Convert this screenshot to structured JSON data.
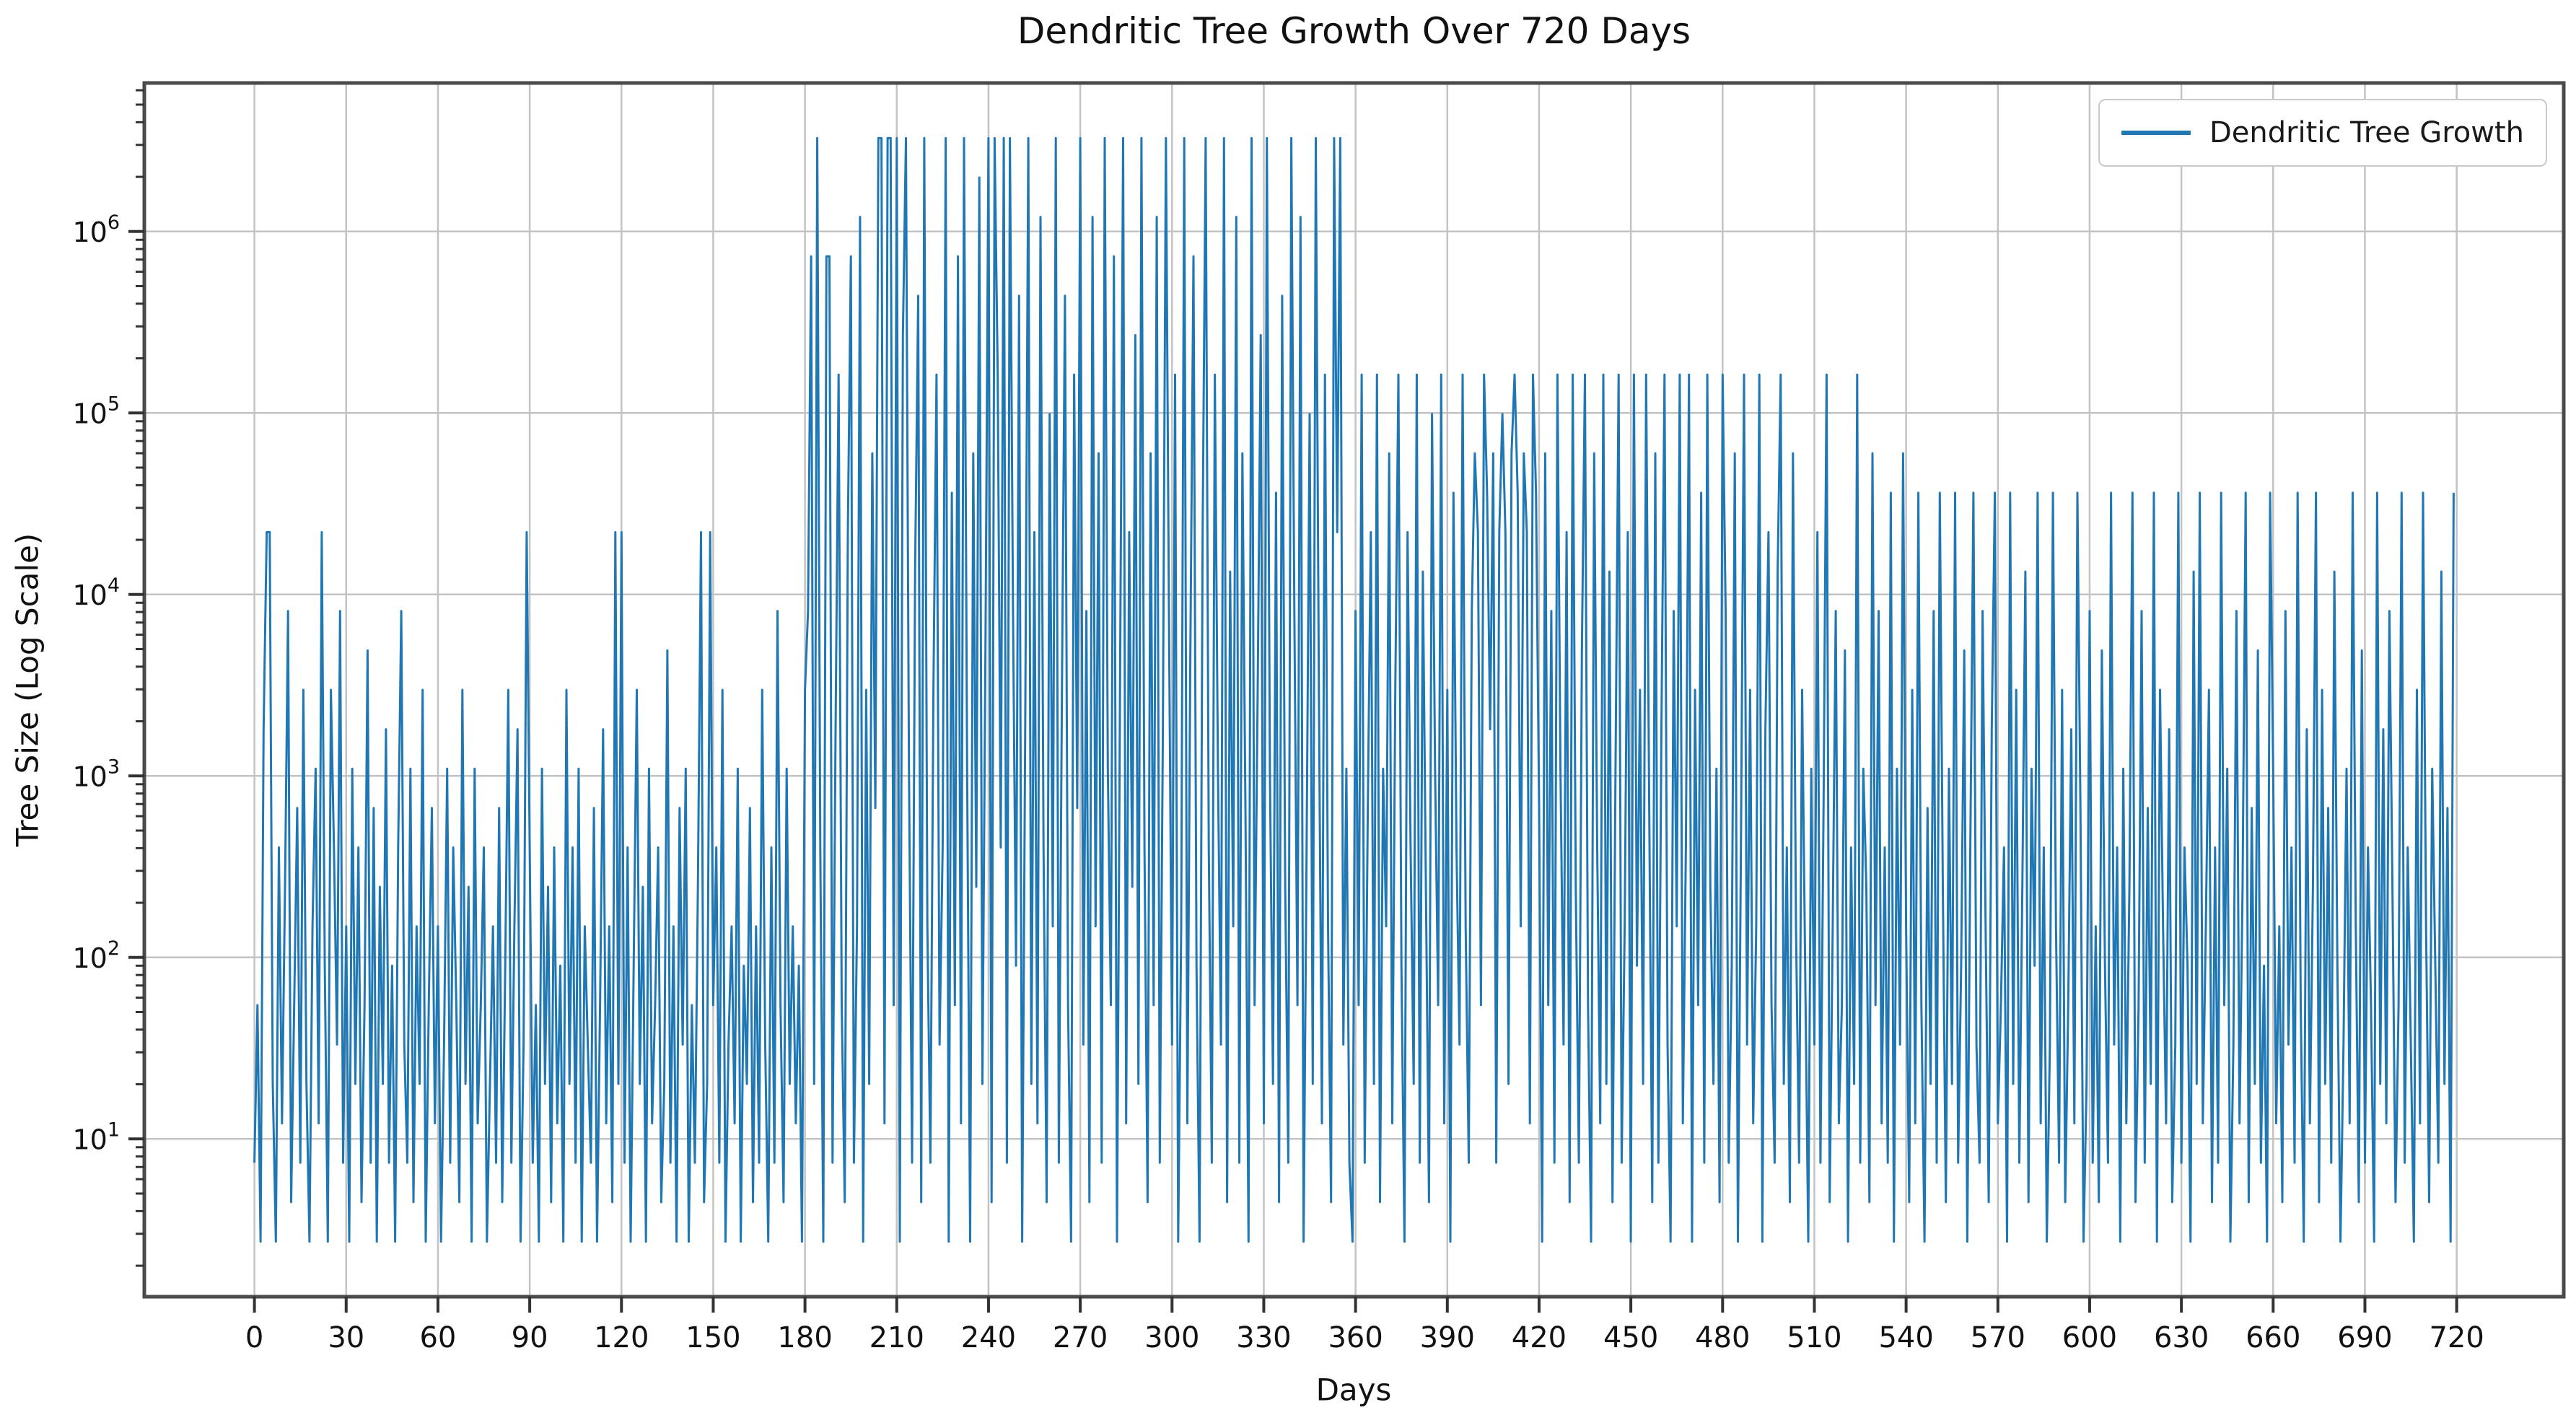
{
  "chart_data": {
    "type": "line",
    "title": "Dendritic Tree Growth Over 720 Days",
    "xlabel": "Days",
    "ylabel": "Tree Size (Log Scale)",
    "grid": true,
    "legend": {
      "position": "upper right",
      "entries": [
        {
          "label": "Dendritic Tree Growth",
          "color": "#1f77b4"
        }
      ]
    },
    "x_ticks": [
      0,
      30,
      60,
      90,
      120,
      150,
      180,
      210,
      240,
      270,
      300,
      330,
      360,
      390,
      420,
      450,
      480,
      510,
      540,
      570,
      600,
      630,
      660,
      690,
      720
    ],
    "y_scale": "log10",
    "y_tick_exponents": [
      1,
      2,
      3,
      4,
      5,
      6
    ],
    "xlim": [
      -36,
      755
    ],
    "ylim": [
      1.35,
      6580000
    ],
    "colors": {
      "line": "#1f77b4",
      "grid": "#c3c3c3",
      "spine": "#4a4a4a",
      "tick": "#333333",
      "text": "#111111"
    },
    "series": [
      {
        "name": "Dendritic Tree Growth",
        "color": "#1f77b4",
        "x_start": 0,
        "x_step": 1,
        "n_points": 720,
        "y_transform": "value = exp(y_ln[i])",
        "y_ln": [
          2,
          4,
          1,
          7.5,
          10,
          10,
          3,
          1,
          6,
          2.5,
          5.5,
          9,
          1.5,
          4,
          6.5,
          2,
          8,
          3,
          1,
          5,
          7,
          2.5,
          10,
          4.5,
          1,
          8,
          6,
          3.5,
          9,
          2,
          5,
          1,
          7,
          3,
          6,
          1.5,
          4,
          8.5,
          2,
          6.5,
          1,
          5.5,
          3,
          7.5,
          2,
          4.5,
          1,
          6,
          9,
          3.5,
          2,
          7,
          1.5,
          5,
          3,
          8,
          1,
          4,
          6.5,
          2.5,
          5,
          1,
          3.5,
          7,
          2,
          6,
          4,
          1.5,
          8,
          3,
          5.5,
          1,
          7,
          2.5,
          4,
          6,
          1,
          3,
          5,
          2,
          6.5,
          1.5,
          4.5,
          8,
          2,
          5,
          7.5,
          1,
          3.5,
          10,
          6,
          2,
          4,
          1,
          7,
          3,
          5.5,
          1.5,
          6,
          2.5,
          4.5,
          1,
          8,
          3,
          6,
          2,
          7,
          1,
          5,
          3.5,
          2,
          6.5,
          1,
          4,
          7.5,
          2.5,
          5,
          1.5,
          10,
          3,
          10,
          2,
          6,
          1,
          4.5,
          8,
          3,
          5.5,
          1,
          7,
          2.5,
          4,
          6,
          1.5,
          3,
          8.5,
          2,
          5,
          1,
          6.5,
          3.5,
          7,
          1,
          4,
          2,
          5.5,
          10,
          1.5,
          3,
          10,
          4,
          6,
          2,
          8,
          1,
          3.5,
          5,
          2.5,
          7,
          1,
          4.5,
          3,
          6.5,
          1.5,
          5,
          2,
          8,
          3.5,
          1,
          6,
          2,
          9,
          4,
          1.5,
          7,
          3,
          5,
          2.5,
          4.5,
          1,
          8,
          9,
          13.5,
          3,
          15,
          6,
          1,
          13.5,
          13.5,
          2,
          7.5,
          12,
          4,
          1.5,
          10,
          13.5,
          2,
          5,
          14,
          1,
          8,
          3,
          11,
          6.5,
          15,
          15,
          2.5,
          15,
          15,
          4,
          15,
          1,
          12.5,
          15,
          7,
          2,
          9.5,
          13,
          1.5,
          15,
          5,
          2,
          8,
          12,
          3.5,
          6,
          15,
          1,
          10.5,
          4,
          13.5,
          2.5,
          15,
          7,
          1,
          11,
          5.5,
          14.5,
          3,
          8.5,
          15,
          1.5,
          15,
          12,
          6,
          15,
          2,
          15,
          9,
          4.5,
          13,
          1,
          7.5,
          15,
          3,
          10,
          2.5,
          14,
          6,
          1.5,
          11.5,
          5,
          15,
          2,
          8,
          13,
          4,
          1,
          12,
          6.5,
          15,
          3.5,
          9,
          1.5,
          14,
          5,
          11,
          2,
          15,
          7,
          4,
          13.5,
          1,
          8,
          15,
          2.5,
          10,
          5.5,
          12.5,
          3,
          15,
          6,
          1.5,
          11,
          4,
          14,
          2,
          7.5,
          15,
          9,
          3.5,
          12,
          1,
          5,
          15,
          2.5,
          8.5,
          13.5,
          4.5,
          1,
          10,
          15,
          6,
          2,
          12,
          7,
          3.5,
          15,
          1.5,
          9.5,
          5,
          14,
          2,
          11,
          6.5,
          1,
          15,
          4,
          8,
          12.5,
          2.5,
          15,
          7,
          3,
          10.5,
          1.5,
          13,
          5.5,
          2,
          15,
          9,
          4,
          14,
          1,
          6,
          11.5,
          3,
          15,
          8,
          2.5,
          12,
          5,
          1.5,
          15,
          10,
          15,
          3.5,
          7,
          2,
          1,
          9,
          4,
          12,
          2,
          6.5,
          10,
          3,
          12,
          1.5,
          7,
          5,
          11,
          2.5,
          8,
          12,
          4.5,
          1,
          10,
          6,
          3,
          12,
          2,
          9.5,
          5.5,
          1.5,
          11.5,
          7,
          4,
          12,
          2.5,
          8,
          1,
          10.5,
          6,
          3.5,
          12,
          5,
          2,
          9,
          11,
          10,
          4,
          12,
          10.5,
          7.5,
          11,
          2,
          10,
          11.5,
          10,
          3,
          11,
          12,
          10.5,
          5,
          11,
          10,
          2.5,
          12,
          10.5,
          6.5,
          1,
          11,
          4,
          9,
          2,
          12,
          7,
          3.5,
          10,
          1.5,
          12,
          5.5,
          2,
          8.5,
          12,
          4,
          1,
          11,
          6,
          2.5,
          12,
          3,
          9.5,
          1.5,
          7,
          12,
          2,
          5,
          10,
          1,
          12,
          4.5,
          8,
          3,
          12,
          6.5,
          1.5,
          11,
          2,
          7.5,
          12,
          3.5,
          1,
          9,
          5,
          12,
          2.5,
          6,
          12,
          1,
          8,
          4,
          10.5,
          2,
          12,
          5.5,
          3,
          7,
          1.5,
          12,
          9,
          2,
          4.5,
          11,
          1,
          6,
          12,
          3.5,
          8,
          2.5,
          5,
          12,
          1,
          7.5,
          10,
          4,
          2,
          9.5,
          12,
          3,
          6,
          1.5,
          11,
          5,
          2,
          8,
          4.5,
          1,
          7,
          3.5,
          10,
          2,
          6.5,
          12,
          1.5,
          5,
          9,
          2.5,
          4,
          8.5,
          1,
          6,
          3,
          12,
          2,
          7,
          5.5,
          1.5,
          11,
          4,
          9,
          2.5,
          6,
          2,
          10.5,
          1,
          7,
          3.5,
          11,
          5,
          1.5,
          8,
          2.5,
          10.5,
          4,
          1,
          6.5,
          3,
          9,
          2,
          10.5,
          5.5,
          1.5,
          7,
          3,
          10.5,
          2,
          4.5,
          8.5,
          1,
          6,
          10.5,
          3.5,
          2,
          9,
          5,
          1.5,
          7.5,
          10.5,
          2.5,
          4,
          6,
          1,
          10.5,
          3,
          8,
          2,
          5.5,
          9.5,
          1.5,
          7,
          4.5,
          10.5,
          2.5,
          6,
          1,
          3.5,
          10.5,
          5,
          2,
          8,
          1.5,
          4,
          7.5,
          2.5,
          10.5,
          6.5,
          1,
          3,
          9,
          2,
          5,
          1.5,
          8.5,
          4.5,
          2,
          10.5,
          3.5,
          6,
          1,
          7,
          2.5,
          5.5,
          10.5,
          1.5,
          4,
          9,
          2,
          6.5,
          3,
          10.5,
          1,
          8,
          5,
          2.5,
          7.5,
          1.5,
          3.5,
          10.5,
          2,
          6,
          4.5,
          1,
          9.5,
          3,
          10.5,
          2.5,
          5,
          8,
          1.5,
          6,
          2,
          10.5,
          4,
          7,
          1,
          3.5,
          9,
          2.5,
          5.5,
          10.5,
          1.5,
          6.5,
          3,
          8.5,
          2,
          4.5,
          1,
          10.5,
          7,
          2.5,
          5,
          1.5,
          9,
          3.5,
          6,
          2,
          10.5,
          4,
          1,
          7.5,
          2.5,
          5.5,
          10.5,
          1.5,
          8,
          3,
          6.5,
          2,
          9.5,
          4.5,
          1,
          3.5,
          7,
          2.5,
          10.5,
          5,
          1.5,
          8.5,
          2,
          6,
          4,
          1,
          10.5,
          3,
          7.5,
          2.5,
          9,
          5.5,
          1.5,
          4,
          10.5,
          2,
          6,
          3.5,
          1,
          8,
          2.5,
          10.5,
          5,
          1.5,
          7,
          4.5,
          2,
          9.5,
          3,
          6.5,
          1,
          10.5
        ]
      }
    ]
  }
}
